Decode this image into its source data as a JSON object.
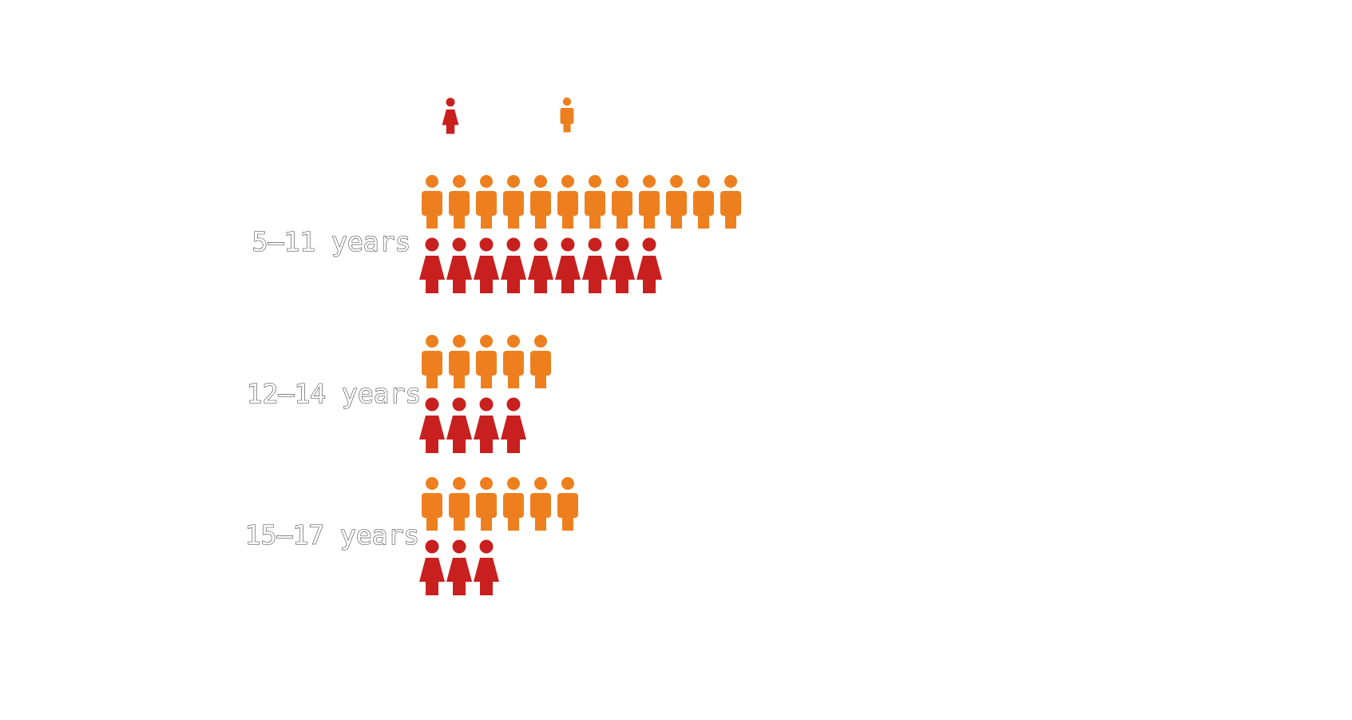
{
  "chart_data": {
    "type": "pictogram",
    "title": "",
    "legend": [
      {
        "name": "",
        "icon": "female-figure-icon",
        "color": "#C8201F"
      },
      {
        "name": "",
        "icon": "male-figure-icon",
        "color": "#EE7F1E"
      }
    ],
    "categories": [
      "5–11 years",
      "12–14 years",
      "15–17 years"
    ],
    "series": [
      {
        "icon": "male-figure-icon",
        "color": "#EE7F1E",
        "values": [
          12,
          5,
          6
        ]
      },
      {
        "icon": "female-figure-icon",
        "color": "#C8201F",
        "values": [
          9,
          4,
          3
        ]
      }
    ]
  }
}
